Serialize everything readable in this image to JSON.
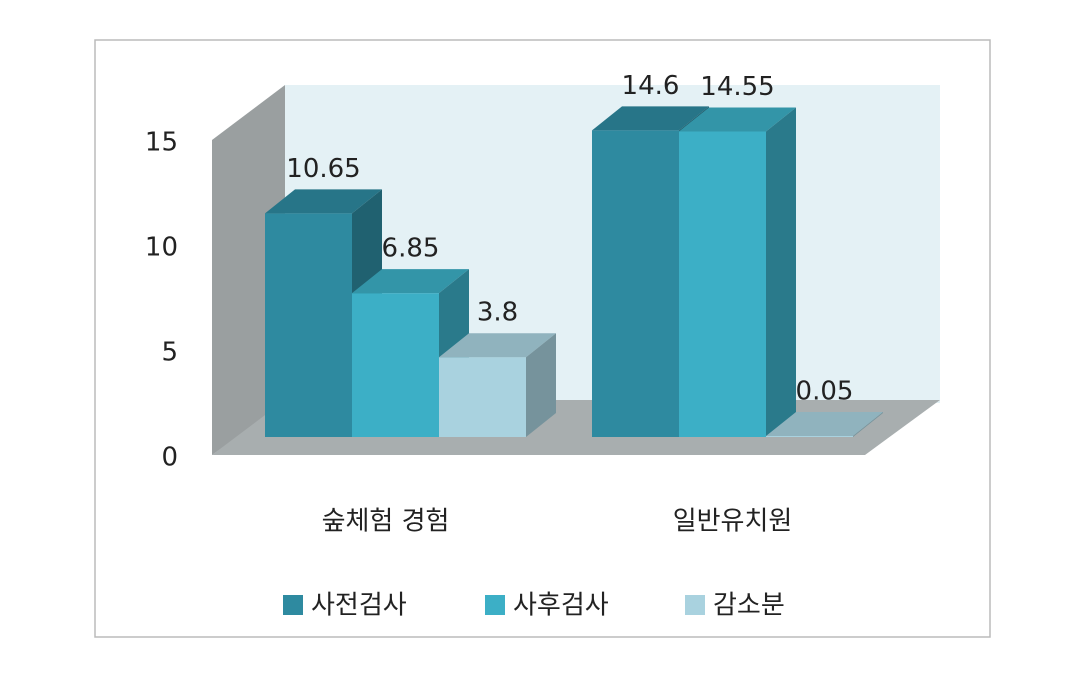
{
  "chart_data": {
    "type": "bar3d",
    "categories": [
      "숲체험 경험",
      "일반유치원"
    ],
    "series": [
      {
        "name": "사전검사",
        "color": "#2e8aa0",
        "values": [
          10.65,
          14.6
        ]
      },
      {
        "name": "사후검사",
        "color": "#3cafc6",
        "values": [
          6.85,
          14.55
        ]
      },
      {
        "name": "감소분",
        "color": "#a9d2df",
        "values": [
          3.8,
          0.05
        ]
      }
    ],
    "ylim": [
      0,
      15
    ],
    "yticks": [
      0,
      5,
      10,
      15
    ],
    "grid": false,
    "legend": "bottom"
  }
}
